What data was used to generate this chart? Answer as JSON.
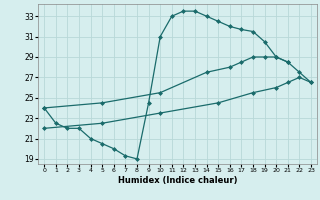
{
  "xlabel": "Humidex (Indice chaleur)",
  "bg_color": "#d6eeee",
  "grid_color": "#b8d8d8",
  "line_color": "#1a6b6b",
  "xlim": [
    -0.5,
    23.5
  ],
  "ylim": [
    18.5,
    34.2
  ],
  "xticks": [
    0,
    1,
    2,
    3,
    4,
    5,
    6,
    7,
    8,
    9,
    10,
    11,
    12,
    13,
    14,
    15,
    16,
    17,
    18,
    19,
    20,
    21,
    22,
    23
  ],
  "yticks": [
    19,
    21,
    23,
    25,
    27,
    29,
    31,
    33
  ],
  "line1_x": [
    0,
    1,
    2,
    3,
    4,
    5,
    6,
    7,
    8,
    9,
    10,
    11,
    12,
    13,
    14,
    15,
    16,
    17,
    18,
    19,
    20,
    21
  ],
  "line1_y": [
    24.0,
    22.5,
    22.0,
    22.0,
    21.0,
    20.5,
    20.0,
    19.3,
    19.0,
    24.5,
    31.0,
    33.0,
    33.5,
    33.5,
    33.0,
    32.5,
    32.0,
    31.7,
    31.5,
    30.5,
    29.0,
    28.5
  ],
  "line2_x": [
    0,
    5,
    10,
    14,
    16,
    17,
    18,
    19,
    20,
    21,
    22,
    23
  ],
  "line2_y": [
    24.0,
    24.5,
    25.5,
    27.5,
    28.0,
    28.5,
    29.0,
    29.0,
    29.0,
    28.5,
    27.5,
    26.5
  ],
  "line3_x": [
    0,
    5,
    10,
    15,
    18,
    20,
    21,
    22,
    23
  ],
  "line3_y": [
    22.0,
    22.5,
    23.5,
    24.5,
    25.5,
    26.0,
    26.5,
    27.0,
    26.5
  ]
}
